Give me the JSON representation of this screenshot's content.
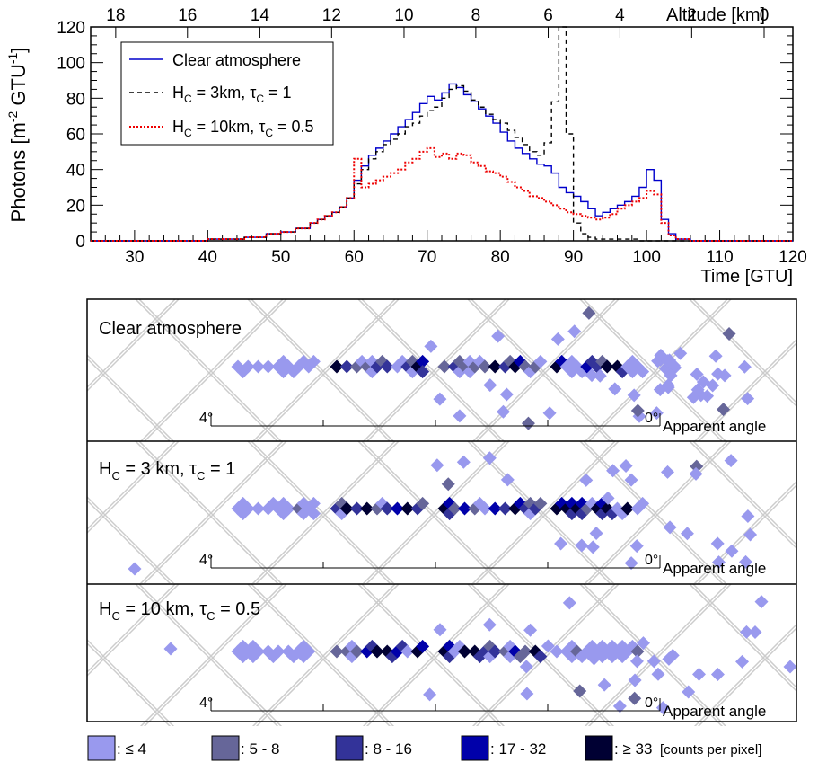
{
  "chart_data": [
    {
      "type": "line",
      "xlabel": "Time [GTU]",
      "ylabel": "Photons [m-2 GTU-1]",
      "ylabel_parts": {
        "base": "Photons [m",
        "sup1": "-2",
        "mid": " GTU",
        "sup2": "-1",
        "end": "]"
      },
      "top_axis_label": "Altitude [km]",
      "xlim": [
        24,
        120
      ],
      "ylim": [
        0,
        120
      ],
      "x_ticks": [
        30,
        40,
        50,
        60,
        70,
        80,
        90,
        100,
        110,
        120
      ],
      "y_ticks": [
        0,
        20,
        40,
        60,
        80,
        100,
        120
      ],
      "top_ticks": [
        {
          "label": "18",
          "x": 27.8
        },
        {
          "label": "16",
          "x": 38.7
        },
        {
          "label": "14",
          "x": 49.7
        },
        {
          "label": "12",
          "x": 60.6
        },
        {
          "label": "10",
          "x": 71.6
        },
        {
          "label": "8",
          "x": 82.5
        },
        {
          "label": "6",
          "x": 93.5
        },
        {
          "label": "4",
          "x": 104.4
        },
        {
          "label": "2",
          "x": 115.3
        },
        {
          "label": "0",
          "x": 126.3
        }
      ],
      "legend": {
        "placement": "top-left",
        "entries": [
          {
            "text": "Clear atmosphere"
          },
          {
            "pre": "H",
            "sub1": "C",
            "mid": " = 3km, τ",
            "sub2": "C",
            "post": " = 1"
          },
          {
            "pre": "H",
            "sub1": "C",
            "mid": " = 10km, τ",
            "sub2": "C",
            "post": " = 0.5"
          }
        ]
      },
      "x": [
        24,
        30,
        35,
        40,
        45,
        48,
        50,
        52,
        54,
        55,
        56,
        57,
        58,
        59,
        60,
        61,
        62,
        63,
        64,
        65,
        66,
        67,
        68,
        69,
        70,
        71,
        72,
        73,
        74,
        75,
        76,
        77,
        78,
        79,
        80,
        81,
        82,
        83,
        84,
        85,
        86,
        87,
        88,
        89,
        90,
        91,
        92,
        93,
        94,
        95,
        96,
        97,
        98,
        99,
        100,
        101,
        102,
        103,
        104,
        106,
        110,
        115,
        120
      ],
      "series": [
        {
          "name": "Clear atmosphere",
          "color": "#0000cc",
          "dash": "solid",
          "values": [
            0,
            0,
            0,
            1,
            2,
            4,
            5,
            7,
            10,
            12,
            14,
            16,
            19,
            24,
            34,
            42,
            48,
            52,
            56,
            60,
            64,
            68,
            72,
            77,
            81,
            79,
            83,
            88,
            86,
            82,
            78,
            74,
            70,
            66,
            61,
            56,
            52,
            49,
            46,
            43,
            42,
            38,
            30,
            27,
            25,
            22,
            18,
            14,
            16,
            18,
            20,
            22,
            25,
            30,
            40,
            34,
            12,
            4,
            1,
            0,
            0,
            0,
            0
          ]
        },
        {
          "name": "H_C = 3km, τ_C = 1",
          "color": "#000000",
          "dash": "dashed",
          "values": [
            0,
            0,
            0,
            1,
            2,
            4,
            5,
            7,
            10,
            12,
            14,
            16,
            19,
            24,
            32,
            40,
            46,
            50,
            54,
            57,
            60,
            64,
            66,
            70,
            73,
            75,
            80,
            85,
            87,
            84,
            79,
            75,
            71,
            68,
            66,
            62,
            58,
            54,
            50,
            48,
            55,
            78,
            120,
            60,
            10,
            4,
            2,
            1,
            1,
            1,
            1,
            1,
            1,
            0,
            0,
            0,
            0,
            0,
            0,
            0,
            0,
            0,
            0
          ]
        },
        {
          "name": "H_C = 10km, τ_C = 0.5",
          "color": "#ee0000",
          "dash": "dotted",
          "values": [
            0,
            0,
            0,
            1,
            2,
            4,
            5,
            7,
            10,
            12,
            14,
            16,
            19,
            24,
            46,
            30,
            32,
            34,
            36,
            38,
            40,
            44,
            46,
            50,
            52,
            47,
            49,
            46,
            49,
            48,
            44,
            42,
            39,
            38,
            36,
            33,
            30,
            28,
            25,
            24,
            22,
            20,
            18,
            16,
            15,
            14,
            13,
            12,
            13,
            15,
            18,
            20,
            22,
            24,
            28,
            26,
            10,
            3,
            1,
            0,
            0,
            0,
            0
          ]
        }
      ]
    },
    {
      "type": "heatmap",
      "axis_label": "Apparent angle",
      "angle_ticks": [
        "4°",
        "0°"
      ],
      "color_legend": [
        {
          "label": ": ≤ 4",
          "color": "#9999ee"
        },
        {
          "label": ": 5 - 8",
          "color": "#666699"
        },
        {
          "label": ": 8 - 16",
          "color": "#333399"
        },
        {
          "label": ": 17 - 32",
          "color": "#0000aa"
        },
        {
          "label": ": ≥ 33",
          "color": "#000033"
        }
      ],
      "color_legend_unit": "[counts per pixel]",
      "panels": [
        {
          "title": {
            "text": "Clear atmosphere"
          }
        },
        {
          "title": {
            "pre": "H",
            "sub1": "C",
            "mid": " = 3 km, τ",
            "sub2": "C",
            "post": " = 1"
          }
        },
        {
          "title": {
            "pre": "H",
            "sub1": "C",
            "mid": " = 10 km, τ",
            "sub2": "C",
            "post": " = 0.5"
          }
        }
      ]
    }
  ]
}
